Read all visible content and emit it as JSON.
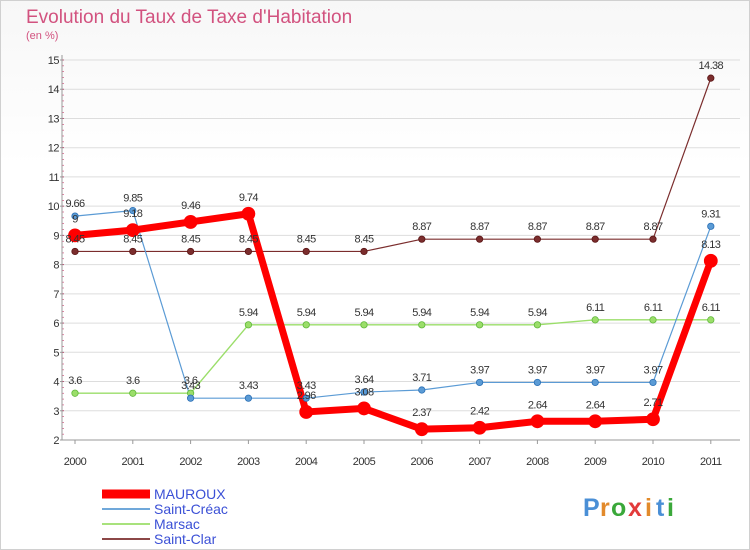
{
  "chart_data": {
    "type": "line",
    "title": "Evolution du Taux de Taxe d'Habitation",
    "subtitle": "(en %)",
    "xlabel": "",
    "ylabel": "",
    "categories": [
      "2000",
      "2001",
      "2002",
      "2003",
      "2004",
      "2005",
      "2006",
      "2007",
      "2008",
      "2009",
      "2010",
      "2011"
    ],
    "yticks": [
      "2",
      "3",
      "4",
      "5",
      "6",
      "7",
      "8",
      "9",
      "10",
      "11",
      "12",
      "13",
      "14",
      "15"
    ],
    "ylim": [
      2,
      15
    ],
    "grid": true,
    "legend_position": "bottom-left",
    "series": [
      {
        "name": "MAUROUX",
        "color": "#ff0000",
        "values": [
          9.0,
          9.18,
          9.46,
          9.74,
          2.96,
          3.08,
          2.37,
          2.42,
          2.64,
          2.64,
          2.71,
          8.13
        ],
        "labels": [
          "9",
          "9.18",
          "9.46",
          "9.74",
          "2.96",
          "3.08",
          "2.37",
          "2.42",
          "2.64",
          "2.64",
          "2.71",
          "8.13"
        ]
      },
      {
        "name": "Saint-Créac",
        "color": "#5b9bd5",
        "values": [
          9.66,
          9.85,
          3.43,
          3.43,
          3.43,
          3.64,
          3.71,
          3.97,
          3.97,
          3.97,
          3.97,
          9.31
        ],
        "labels": [
          "9.66",
          "9.85",
          "3.43",
          "3.43",
          "3.43",
          "3.64",
          "3.71",
          "3.97",
          "3.97",
          "3.97",
          "3.97",
          "9.31"
        ]
      },
      {
        "name": "Marsac",
        "color": "#9bde6a",
        "values": [
          3.6,
          3.6,
          3.6,
          5.94,
          5.94,
          5.94,
          5.94,
          5.94,
          5.94,
          6.11,
          6.11,
          6.11
        ],
        "labels": [
          "3.6",
          "3.6",
          "3.6",
          "5.94",
          "5.94",
          "5.94",
          "5.94",
          "5.94",
          "5.94",
          "6.11",
          "6.11",
          "6.11"
        ]
      },
      {
        "name": "Saint-Clar",
        "color": "#7b2d2d",
        "values": [
          8.45,
          8.45,
          8.45,
          8.45,
          8.45,
          8.45,
          8.87,
          8.87,
          8.87,
          8.87,
          8.87,
          14.38
        ],
        "labels": [
          "8.45",
          "8.45",
          "8.45",
          "8.45",
          "8.45",
          "8.45",
          "8.87",
          "8.87",
          "8.87",
          "8.87",
          "8.87",
          "14.38"
        ]
      }
    ]
  },
  "brand": {
    "letters": [
      "P",
      "r",
      "o",
      "x",
      "i",
      "t",
      "i"
    ],
    "colors": [
      "#4a8fd6",
      "#e28a2b",
      "#3aa83a",
      "#e23b3b",
      "#e28a2b",
      "#4a8fd6",
      "#3aa83a"
    ]
  }
}
